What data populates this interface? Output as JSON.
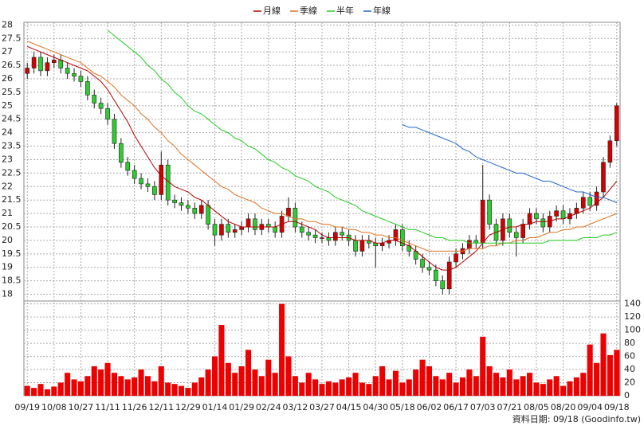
{
  "chart_data": {
    "type": "candlestick",
    "categories": [
      "09/19",
      null,
      null,
      null,
      "10/08",
      null,
      null,
      null,
      "10/27",
      null,
      null,
      null,
      "11/11",
      null,
      null,
      null,
      "11/26",
      null,
      null,
      null,
      "12/11",
      null,
      null,
      null,
      "12/29",
      null,
      null,
      null,
      "01/14",
      null,
      null,
      null,
      "01/29",
      null,
      null,
      null,
      "02/24",
      null,
      null,
      null,
      "03/12",
      null,
      null,
      null,
      "03/27",
      null,
      null,
      null,
      "04/15",
      null,
      null,
      null,
      "04/30",
      null,
      null,
      null,
      "05/18",
      null,
      null,
      null,
      "06/02",
      null,
      null,
      null,
      "06/17",
      null,
      null,
      null,
      "07/03",
      null,
      null,
      null,
      "07/21",
      null,
      null,
      null,
      "08/05",
      null,
      null,
      null,
      "08/20",
      null,
      null,
      null,
      "09/04",
      null,
      null,
      null,
      "09/18"
    ],
    "open": [
      26.2,
      26.4,
      26.8,
      26.3,
      26.6,
      26.7,
      26.4,
      26.2,
      26.1,
      25.9,
      25.4,
      25.1,
      24.9,
      24.5,
      23.6,
      22.9,
      22.6,
      22.3,
      22.1,
      22.0,
      21.7,
      22.8,
      21.5,
      21.4,
      21.3,
      21.2,
      21.0,
      21.3,
      20.6,
      20.2,
      20.6,
      20.3,
      20.4,
      20.5,
      20.8,
      20.4,
      20.6,
      20.5,
      20.3,
      20.9,
      21.2,
      20.5,
      20.3,
      20.2,
      20.1,
      20.1,
      20.0,
      20.3,
      20.2,
      20.0,
      19.6,
      20.0,
      19.9,
      19.8,
      19.9,
      20.0,
      20.4,
      19.8,
      19.6,
      19.3,
      19.0,
      18.9,
      18.5,
      18.2,
      19.2,
      19.5,
      19.7,
      20.0,
      19.9,
      21.5,
      20.6,
      20.0,
      20.8,
      20.3,
      20.1,
      20.6,
      21.0,
      20.8,
      20.5,
      20.9,
      21.1,
      20.8,
      21.0,
      21.2,
      21.6,
      21.3,
      21.8,
      22.9,
      23.7
    ],
    "high": [
      26.6,
      27.0,
      27.0,
      26.8,
      26.9,
      26.9,
      26.6,
      26.4,
      26.3,
      26.1,
      25.6,
      25.3,
      25.1,
      24.7,
      23.8,
      23.1,
      22.8,
      22.5,
      22.3,
      22.2,
      23.3,
      23.0,
      21.7,
      21.6,
      21.5,
      21.4,
      21.5,
      21.5,
      20.8,
      20.8,
      20.8,
      20.6,
      20.7,
      21.0,
      21.0,
      20.8,
      20.8,
      20.7,
      21.1,
      21.6,
      21.4,
      20.7,
      20.5,
      20.4,
      20.3,
      20.3,
      20.5,
      20.5,
      20.4,
      20.2,
      20.2,
      20.2,
      20.1,
      20.1,
      20.2,
      20.6,
      20.6,
      20.0,
      19.8,
      19.5,
      19.2,
      19.1,
      18.7,
      19.4,
      19.7,
      19.9,
      20.2,
      20.2,
      22.8,
      21.7,
      20.8,
      21.0,
      21.0,
      20.5,
      20.8,
      21.2,
      21.2,
      21.0,
      21.1,
      21.3,
      21.3,
      21.2,
      21.4,
      21.8,
      21.8,
      22.0,
      23.1,
      23.9,
      25.1
    ],
    "low": [
      26.0,
      26.2,
      26.1,
      26.1,
      26.4,
      26.2,
      26.0,
      25.9,
      25.7,
      25.2,
      24.9,
      24.7,
      24.3,
      23.4,
      22.7,
      22.4,
      22.1,
      21.9,
      21.8,
      21.5,
      21.5,
      21.3,
      21.2,
      21.1,
      21.0,
      20.8,
      20.8,
      20.4,
      19.8,
      20.0,
      20.1,
      20.1,
      20.2,
      20.3,
      20.2,
      20.2,
      20.3,
      20.1,
      20.1,
      20.7,
      20.3,
      20.1,
      20.0,
      19.9,
      19.9,
      19.8,
      19.8,
      20.0,
      19.8,
      19.4,
      19.4,
      19.7,
      19.0,
      19.6,
      19.7,
      19.8,
      19.6,
      19.4,
      19.1,
      18.8,
      18.7,
      18.3,
      18.0,
      18.0,
      19.0,
      19.3,
      19.5,
      19.7,
      19.7,
      20.4,
      19.8,
      19.8,
      20.1,
      19.4,
      19.9,
      20.4,
      20.6,
      20.3,
      20.3,
      20.7,
      20.6,
      20.6,
      20.8,
      21.0,
      21.1,
      21.1,
      21.6,
      22.7,
      23.5
    ],
    "close": [
      26.4,
      26.8,
      26.3,
      26.6,
      26.7,
      26.4,
      26.2,
      26.1,
      25.9,
      25.4,
      25.1,
      24.9,
      24.5,
      23.6,
      22.9,
      22.6,
      22.3,
      22.1,
      22.0,
      21.7,
      22.8,
      21.5,
      21.4,
      21.3,
      21.2,
      21.0,
      21.3,
      20.6,
      20.2,
      20.6,
      20.3,
      20.4,
      20.5,
      20.8,
      20.4,
      20.6,
      20.5,
      20.3,
      20.9,
      21.2,
      20.5,
      20.3,
      20.2,
      20.1,
      20.1,
      20.0,
      20.3,
      20.2,
      20.0,
      19.6,
      20.0,
      19.9,
      19.8,
      19.9,
      20.0,
      20.4,
      19.8,
      19.6,
      19.3,
      19.0,
      18.9,
      18.5,
      18.2,
      19.2,
      19.5,
      19.7,
      20.0,
      19.9,
      21.5,
      20.6,
      20.0,
      20.8,
      20.3,
      20.1,
      20.6,
      21.0,
      20.8,
      20.5,
      20.9,
      21.1,
      20.8,
      21.0,
      21.2,
      21.6,
      21.3,
      21.8,
      22.9,
      23.7,
      25.0
    ],
    "up_color": "#d40000",
    "down_color": "#2ecc2e",
    "lines": [
      {
        "name": "月線",
        "color": "#b00000",
        "values": [
          27.2,
          27.1,
          27.0,
          26.9,
          26.8,
          26.7,
          26.6,
          26.5,
          26.4,
          26.3,
          26.1,
          25.9,
          25.6,
          25.2,
          24.8,
          24.4,
          23.9,
          23.5,
          23.1,
          22.7,
          22.4,
          22.2,
          22.0,
          21.9,
          21.8,
          21.6,
          21.5,
          21.3,
          21.1,
          20.9,
          20.7,
          20.6,
          20.5,
          20.5,
          20.5,
          20.5,
          20.5,
          20.5,
          20.6,
          20.7,
          20.7,
          20.6,
          20.5,
          20.4,
          20.2,
          20.1,
          20.1,
          20.1,
          20.1,
          20.0,
          20.0,
          20.0,
          19.9,
          19.9,
          20.0,
          20.0,
          19.9,
          19.8,
          19.6,
          19.4,
          19.2,
          19.0,
          18.9,
          18.9,
          19.0,
          19.2,
          19.4,
          19.6,
          19.9,
          20.2,
          20.3,
          20.4,
          20.5,
          20.5,
          20.6,
          20.6,
          20.7,
          20.7,
          20.7,
          20.8,
          20.8,
          20.9,
          21.0,
          21.1,
          21.2,
          21.4,
          21.6,
          21.9,
          22.2
        ]
      },
      {
        "name": "季線",
        "color": "#e07020",
        "values": [
          27.4,
          27.3,
          27.2,
          27.1,
          27.0,
          26.9,
          26.8,
          26.7,
          26.6,
          26.4,
          26.2,
          26.1,
          25.9,
          25.7,
          25.4,
          25.2,
          25.0,
          24.7,
          24.5,
          24.2,
          24.0,
          23.7,
          23.5,
          23.2,
          23.0,
          22.8,
          22.6,
          22.4,
          22.2,
          22.0,
          21.9,
          21.7,
          21.6,
          21.5,
          21.4,
          21.2,
          21.1,
          21.0,
          21.0,
          20.9,
          20.8,
          20.8,
          20.7,
          20.7,
          20.6,
          20.6,
          20.5,
          20.5,
          20.4,
          20.4,
          20.3,
          20.3,
          20.2,
          20.2,
          20.1,
          20.1,
          20.0,
          19.9,
          19.8,
          19.7,
          19.6,
          19.6,
          19.6,
          19.6,
          19.6,
          19.6,
          19.7,
          19.7,
          19.7,
          19.8,
          19.8,
          19.9,
          19.9,
          20.0,
          20.0,
          20.1,
          20.1,
          20.2,
          20.3,
          20.3,
          20.4,
          20.4,
          20.5,
          20.5,
          20.6,
          20.7,
          20.8,
          20.9,
          21.0
        ]
      },
      {
        "name": "半年",
        "color": "#22cc22",
        "values": [
          null,
          null,
          null,
          null,
          null,
          null,
          null,
          null,
          null,
          null,
          null,
          null,
          27.8,
          27.6,
          27.4,
          27.2,
          27.0,
          26.8,
          26.5,
          26.3,
          26.0,
          25.8,
          25.5,
          25.3,
          25.0,
          24.8,
          24.7,
          24.5,
          24.3,
          24.1,
          24.0,
          23.8,
          23.7,
          23.5,
          23.4,
          23.2,
          23.0,
          22.9,
          22.7,
          22.6,
          22.4,
          22.3,
          22.2,
          22.0,
          21.9,
          21.8,
          21.6,
          21.5,
          21.4,
          21.3,
          21.1,
          21.0,
          20.9,
          20.8,
          20.7,
          20.6,
          20.5,
          20.4,
          20.4,
          20.3,
          20.2,
          20.1,
          20.1,
          20.0,
          20.0,
          20.0,
          19.9,
          19.9,
          19.9,
          19.9,
          19.9,
          19.9,
          19.9,
          19.9,
          19.9,
          19.9,
          19.9,
          19.9,
          20.0,
          20.0,
          20.0,
          20.0,
          20.0,
          20.1,
          20.1,
          20.1,
          20.2,
          20.2,
          20.3
        ]
      },
      {
        "name": "年線",
        "color": "#2266cc",
        "values": [
          null,
          null,
          null,
          null,
          null,
          null,
          null,
          null,
          null,
          null,
          null,
          null,
          null,
          null,
          null,
          null,
          null,
          null,
          null,
          null,
          null,
          null,
          null,
          null,
          null,
          null,
          null,
          null,
          null,
          null,
          null,
          null,
          null,
          null,
          null,
          null,
          null,
          null,
          null,
          null,
          null,
          null,
          null,
          null,
          null,
          null,
          null,
          null,
          null,
          null,
          null,
          null,
          null,
          null,
          null,
          null,
          24.3,
          24.2,
          24.2,
          24.1,
          24.0,
          23.9,
          23.8,
          23.7,
          23.6,
          23.4,
          23.3,
          23.1,
          23.0,
          22.9,
          22.8,
          22.7,
          22.6,
          22.5,
          22.5,
          22.4,
          22.3,
          22.2,
          22.2,
          22.1,
          22.0,
          21.9,
          21.8,
          21.8,
          21.7,
          21.6,
          21.6,
          21.5,
          21.4
        ]
      }
    ],
    "volume": {
      "color": "#ee0000",
      "values": [
        15,
        12,
        18,
        10,
        14,
        20,
        35,
        25,
        22,
        30,
        45,
        40,
        50,
        35,
        30,
        25,
        28,
        40,
        30,
        22,
        45,
        20,
        18,
        15,
        12,
        20,
        28,
        40,
        60,
        108,
        50,
        35,
        45,
        70,
        40,
        30,
        55,
        35,
        140,
        60,
        30,
        20,
        35,
        25,
        18,
        22,
        20,
        25,
        28,
        35,
        20,
        18,
        30,
        45,
        25,
        38,
        20,
        25,
        40,
        55,
        45,
        30,
        25,
        35,
        20,
        28,
        40,
        30,
        90,
        45,
        35,
        28,
        40,
        25,
        30,
        35,
        20,
        18,
        25,
        30,
        15,
        22,
        28,
        35,
        78,
        50,
        95,
        62,
        70
      ]
    },
    "ylim": [
      17.75,
      28.1
    ],
    "yticks": [
      18,
      18.5,
      19,
      19.5,
      20,
      20.5,
      21,
      21.5,
      22,
      22.5,
      23,
      23.5,
      24,
      24.5,
      25,
      25.5,
      26,
      26.5,
      27,
      27.5,
      28
    ],
    "y2lim": [
      0,
      142
    ],
    "y2ticks": [
      0,
      20,
      40,
      60,
      80,
      100,
      120,
      140
    ],
    "grid": true,
    "legend": "top",
    "footer": "資料日期: 09/18 (Goodinfo.tw)"
  }
}
